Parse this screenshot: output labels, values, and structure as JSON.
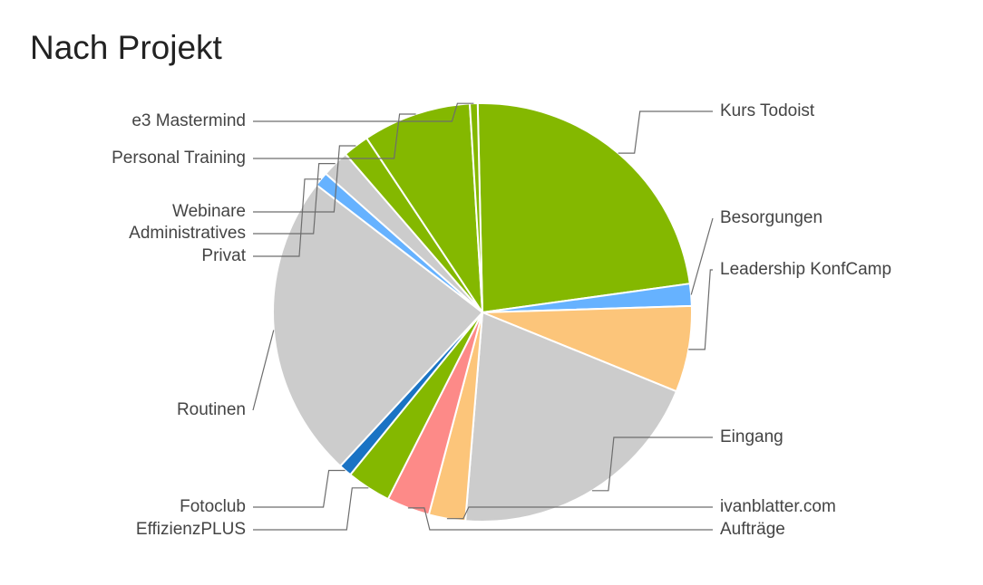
{
  "chart_data": {
    "type": "pie",
    "title": "Nach Projekt",
    "legend": "labels",
    "slices": [
      {
        "label": "Kurs Todoist",
        "value": 23.0,
        "color": "#84b800"
      },
      {
        "label": "Besorgungen",
        "value": 1.7,
        "color": "#66b2ff"
      },
      {
        "label": "Leadership KonfCamp",
        "value": 6.6,
        "color": "#fcc57a"
      },
      {
        "label": "Eingang",
        "value": 20.0,
        "color": "#cccccc"
      },
      {
        "label": "ivanblatter.com",
        "value": 2.8,
        "color": "#fcc57a"
      },
      {
        "label": "Aufträge",
        "value": 3.3,
        "color": "#fd8a88"
      },
      {
        "label": "EffizienzPLUS",
        "value": 3.4,
        "color": "#84b800"
      },
      {
        "label": "Fotoclub",
        "value": 1.0,
        "color": "#1a73c4"
      },
      {
        "label": "Routinen",
        "value": 23.4,
        "color": "#cccccc"
      },
      {
        "label": "Privat",
        "value": 1.1,
        "color": "#66b2ff"
      },
      {
        "label": "Administratives",
        "value": 2.1,
        "color": "#cccccc"
      },
      {
        "label": "Webinare",
        "value": 2.0,
        "color": "#84b800"
      },
      {
        "label": "Personal Training",
        "value": 8.3,
        "color": "#84b800"
      },
      {
        "label": "e3 Mastermind",
        "value": 0.6,
        "color": "#84b800"
      }
    ]
  }
}
